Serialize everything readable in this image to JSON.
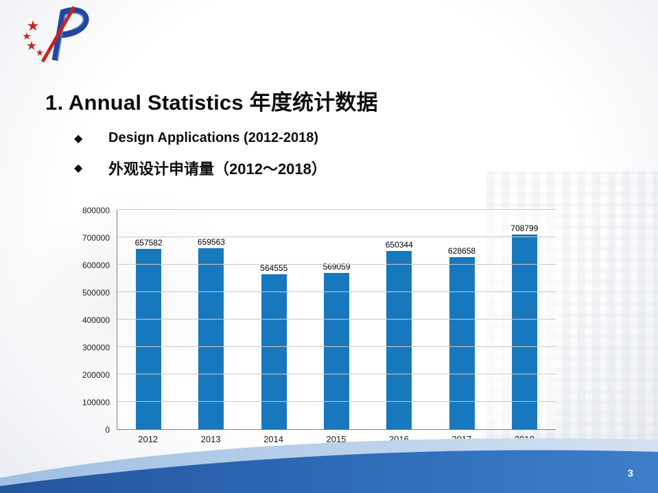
{
  "slide": {
    "title": "1.  Annual Statistics 年度统计数据",
    "bullets": [
      {
        "label": "Design Applications (2012-2018)"
      },
      {
        "label": "外观设计申请量（2012～2018）"
      }
    ],
    "page_number": "3"
  },
  "logo": {
    "name": "sipo-logo",
    "star_color": "#C8241C",
    "ribbon_color": "#23479E"
  },
  "chart_data": {
    "type": "bar",
    "categories": [
      "2012",
      "2013",
      "2014",
      "2015",
      "2016",
      "2017",
      "2018"
    ],
    "values": [
      657582,
      659563,
      564555,
      569059,
      650344,
      628658,
      708799
    ],
    "title": "",
    "xlabel": "",
    "ylabel": "",
    "ylim": [
      0,
      800000
    ],
    "ytick_interval": 100000,
    "bar_color": "#1878BE",
    "grid": true,
    "legend": false,
    "data_labels": true
  },
  "colors": {
    "swoosh_light": "#BBD2EA",
    "swoosh_dark": "#2B67B2",
    "text": "#0d0d0d"
  }
}
